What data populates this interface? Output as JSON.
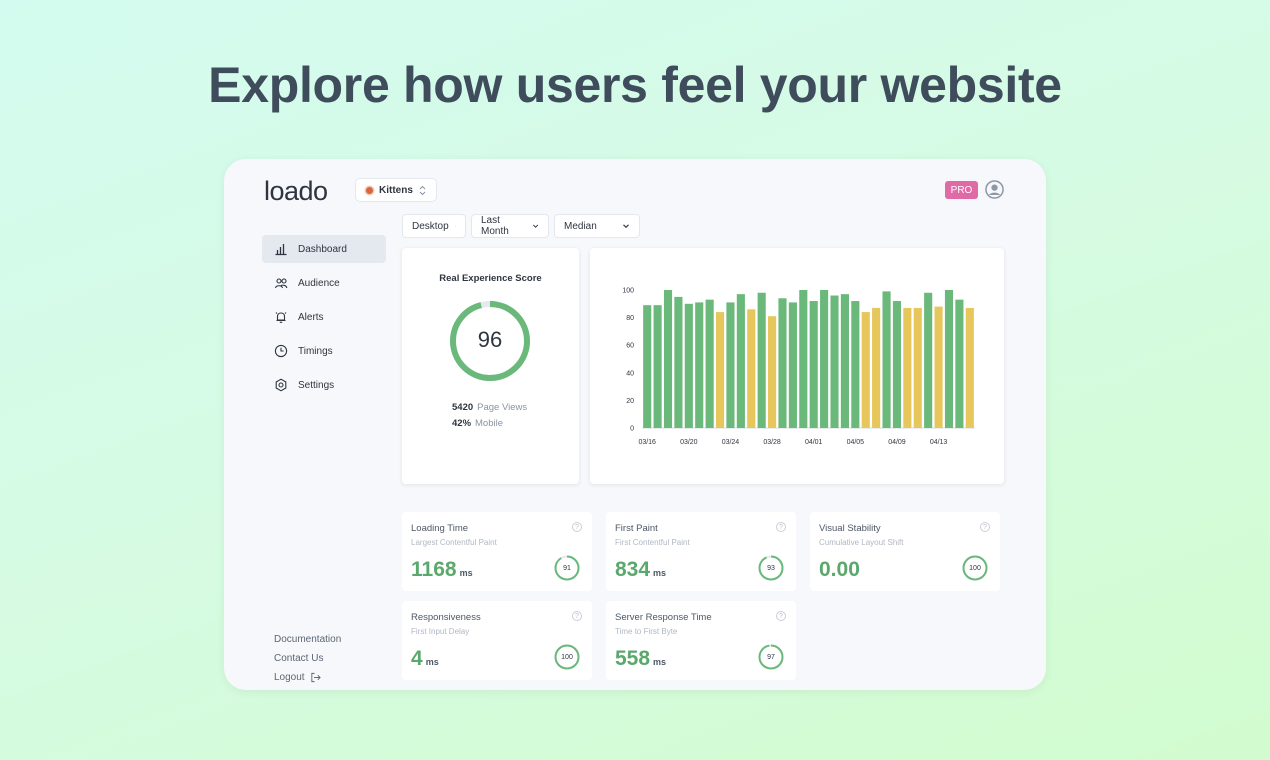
{
  "headline": "Explore how users feel your website",
  "app": {
    "logo": "loado",
    "site_selector": {
      "label": "Kittens"
    },
    "plan_badge": "PRO",
    "sidebar": {
      "items": [
        {
          "label": "Dashboard",
          "icon": "bar-chart-icon",
          "active": true
        },
        {
          "label": "Audience",
          "icon": "users-icon",
          "active": false
        },
        {
          "label": "Alerts",
          "icon": "bell-icon",
          "active": false
        },
        {
          "label": "Timings",
          "icon": "clock-icon",
          "active": false
        },
        {
          "label": "Settings",
          "icon": "gear-icon",
          "active": false
        }
      ],
      "footer_links": [
        "Documentation",
        "Contact Us",
        "Logout"
      ]
    },
    "filters": {
      "device": "Desktop",
      "period": "Last Month",
      "aggregation": "Median"
    },
    "score_card": {
      "title": "Real Experience Score",
      "score": "96",
      "score_fraction": 0.96,
      "page_views_value": "5420",
      "page_views_label": "Page Views",
      "mobile_value": "42%",
      "mobile_label": "Mobile"
    },
    "metrics": [
      {
        "title": "Loading Time",
        "subtitle": "Largest Contentful Paint",
        "value": "1168",
        "unit": "ms",
        "score": "91"
      },
      {
        "title": "First Paint",
        "subtitle": "First Contentful Paint",
        "value": "834",
        "unit": "ms",
        "score": "93"
      },
      {
        "title": "Visual Stability",
        "subtitle": "Cumulative Layout Shift",
        "value": "0.00",
        "unit": "",
        "score": "100"
      },
      {
        "title": "Responsiveness",
        "subtitle": "First Input Delay",
        "value": "4",
        "unit": "ms",
        "score": "100"
      },
      {
        "title": "Server Response Time",
        "subtitle": "Time to First Byte",
        "value": "558",
        "unit": "ms",
        "score": "97"
      }
    ],
    "colors": {
      "good": "#6ab87a",
      "warn": "#e7c65c",
      "accent_pink": "#e06aa6"
    }
  },
  "chart_data": {
    "type": "bar",
    "ylim": [
      0,
      100
    ],
    "yticks": [
      0,
      20,
      40,
      60,
      80,
      100
    ],
    "x": [
      "03/16",
      "03/17",
      "03/18",
      "03/19",
      "03/20",
      "03/21",
      "03/22",
      "03/23",
      "03/24",
      "03/25",
      "03/26",
      "03/27",
      "03/28",
      "03/29",
      "03/30",
      "03/31",
      "04/01",
      "04/02",
      "04/03",
      "04/04",
      "04/05",
      "04/06",
      "04/07",
      "04/08",
      "04/09",
      "04/10",
      "04/11",
      "04/12",
      "04/13",
      "04/14",
      "04/15",
      "04/16"
    ],
    "xtick_labels": [
      "03/16",
      "03/20",
      "03/24",
      "03/28",
      "04/01",
      "04/05",
      "04/09",
      "04/13"
    ],
    "values": [
      89,
      89,
      100,
      95,
      90,
      91,
      93,
      84,
      91,
      97,
      86,
      98,
      81,
      94,
      91,
      100,
      92,
      100,
      96,
      97,
      92,
      84,
      87,
      99,
      92,
      87,
      87,
      98,
      88,
      100,
      93,
      87
    ],
    "status": [
      "good",
      "good",
      "good",
      "good",
      "good",
      "good",
      "good",
      "warn",
      "good",
      "good",
      "warn",
      "good",
      "warn",
      "good",
      "good",
      "good",
      "good",
      "good",
      "good",
      "good",
      "good",
      "warn",
      "warn",
      "good",
      "good",
      "warn",
      "warn",
      "good",
      "warn",
      "good",
      "good",
      "warn"
    ]
  }
}
